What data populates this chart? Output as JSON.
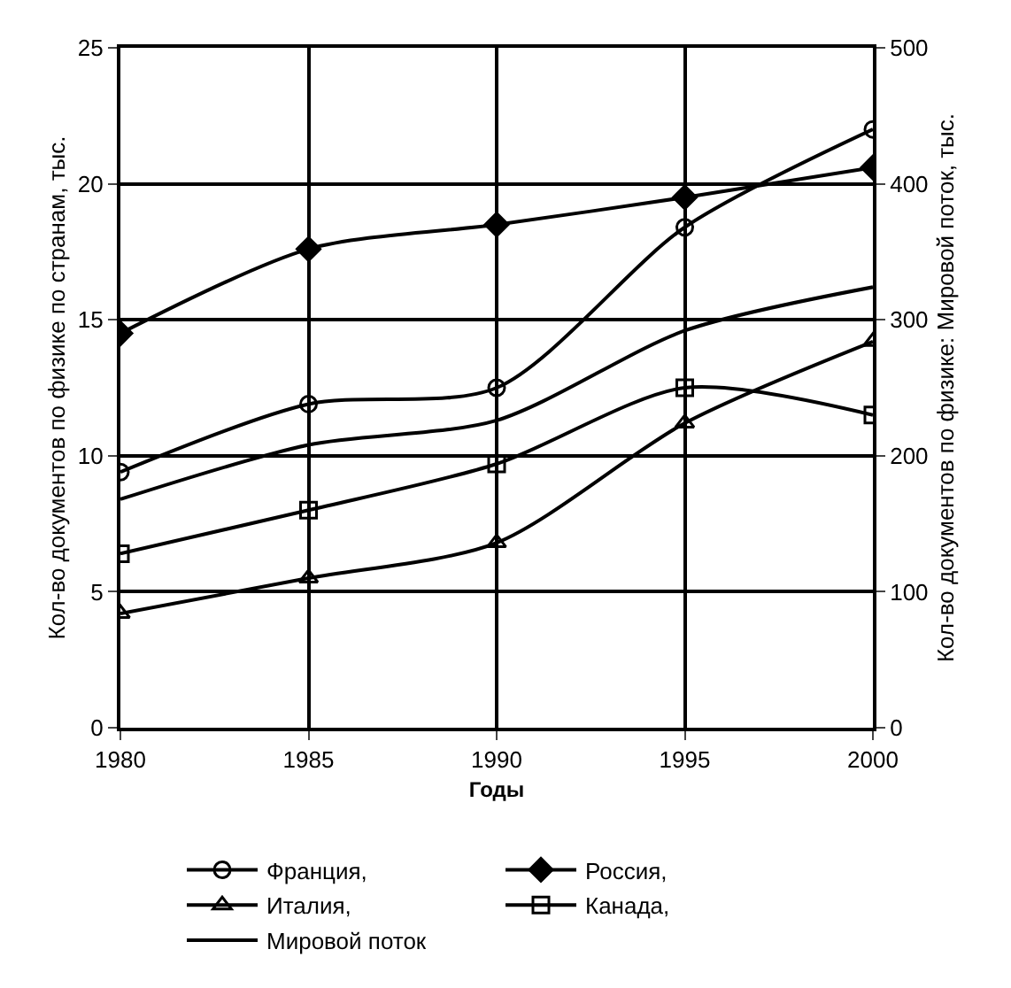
{
  "chart_data": {
    "type": "line",
    "xlabel": "Годы",
    "ylabel": "Кол-во документов по физике по странам, тыс.",
    "y2label": "Кол-во документов по физике: Мировой поток, тыс.",
    "x": [
      1980,
      1985,
      1990,
      1995,
      2000
    ],
    "xlim": [
      1980,
      2000
    ],
    "xticks": [
      1980,
      1985,
      1990,
      1995,
      2000
    ],
    "ylim": [
      0,
      25
    ],
    "yticks": [
      0,
      5,
      10,
      15,
      20,
      25
    ],
    "y2lim": [
      0,
      500
    ],
    "y2ticks": [
      0,
      100,
      200,
      300,
      400,
      500
    ],
    "grid": true,
    "legend": "bottom",
    "line_style": "solid",
    "series": [
      {
        "name": "Франция,",
        "color": "#000000",
        "marker": "circle",
        "values": [
          9.4,
          11.9,
          12.5,
          18.4,
          22.0
        ]
      },
      {
        "name": "Россия,",
        "color": "#000000",
        "marker": "diamond",
        "values": [
          14.5,
          17.6,
          18.5,
          19.5,
          20.6
        ]
      },
      {
        "name": "Италия,",
        "color": "#000000",
        "marker": "triangle",
        "values": [
          4.2,
          5.5,
          6.8,
          11.2,
          14.2
        ]
      },
      {
        "name": "Канада,",
        "color": "#000000",
        "marker": "square",
        "values": [
          6.4,
          8.0,
          9.7,
          12.5,
          11.5
        ]
      },
      {
        "name": "Мировой поток",
        "color": "#000000",
        "marker": "none",
        "axis": "y2",
        "values": [
          168,
          208,
          226,
          292,
          324
        ]
      }
    ]
  }
}
